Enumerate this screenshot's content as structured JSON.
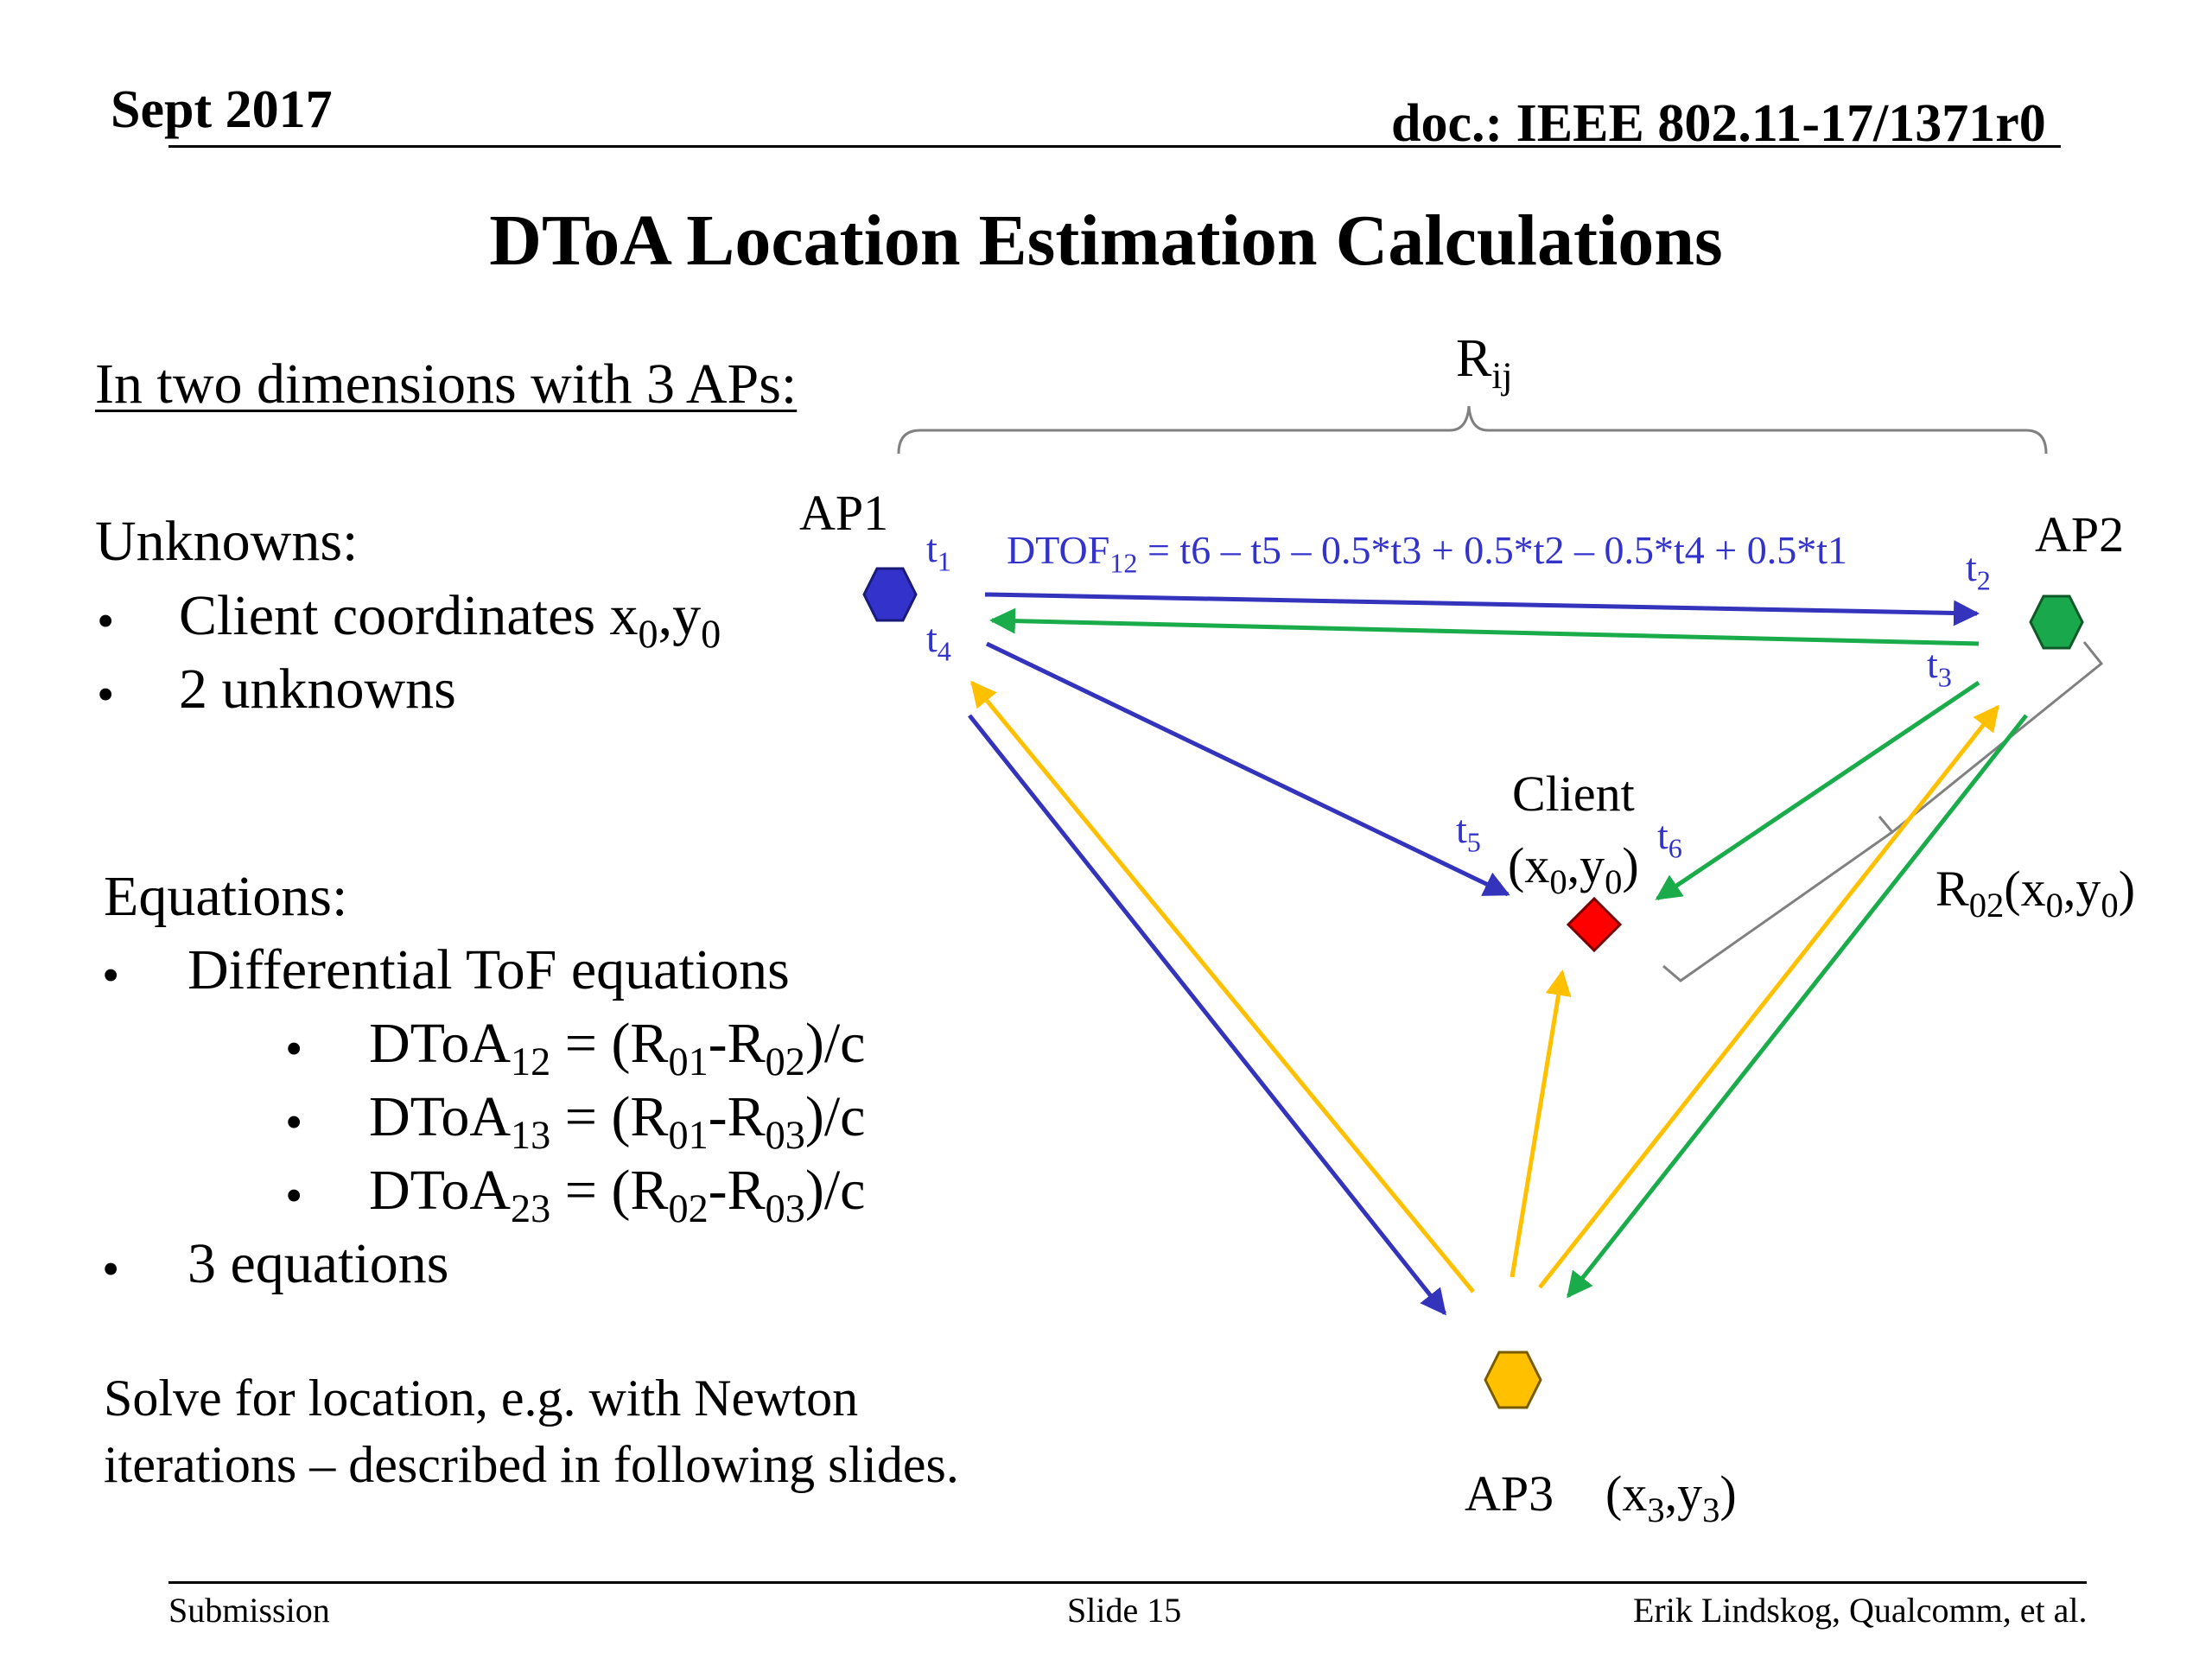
{
  "header": {
    "date": "Sept 2017",
    "doc": "doc.: IEEE 802.11-17/1371r0"
  },
  "title": "DToA Location Estimation Calculations",
  "left": {
    "intro": "In two dimensions with 3 APs:",
    "unknowns_heading": "Unknowns:",
    "unknowns": [
      {
        "text": "Client coordinates x",
        "s1": "0",
        "mid": ",y",
        "s2": "0"
      },
      {
        "text": "2 unknowns"
      }
    ],
    "equations_heading": "Equations:",
    "eq_item1": "Differential ToF equations",
    "equations": [
      {
        "a": "DToA",
        "a_sub": "12",
        "b": " = (R",
        "b_sub": "01",
        "c": "-R",
        "c_sub": "02",
        "d": ")/c"
      },
      {
        "a": "DToA",
        "a_sub": "13",
        "b": " = (R",
        "b_sub": "01",
        "c": "-R",
        "c_sub": "03",
        "d": ")/c"
      },
      {
        "a": "DToA",
        "a_sub": "23",
        "b": " = (R",
        "b_sub": "02",
        "c": "-R",
        "c_sub": "03",
        "d": ")/c"
      }
    ],
    "eq_item2": "3 equations",
    "solve_line1": "Solve for location, e.g. with Newton",
    "solve_line2": "iterations – described in following slides."
  },
  "diagram": {
    "rij": {
      "base": "R",
      "sub": "ij"
    },
    "ap1": "AP1",
    "ap2": "AP2",
    "ap3": "AP3",
    "ap3_coord": {
      "a": "(x",
      "s1": "3",
      "b": ",y",
      "s2": "3",
      "c": ")"
    },
    "client": "Client",
    "client_coord": {
      "a": "(x",
      "s1": "0",
      "b": ",y",
      "s2": "0",
      "c": ")"
    },
    "r02": {
      "a": "R",
      "s0": "02",
      "b": "(x",
      "s1": "0",
      "c": ",y",
      "s2": "0",
      "d": ")"
    },
    "dtof": {
      "a": "DTOF",
      "sub": "12",
      "b": " = t6 – t5 – 0.5*t3 + 0.5*t2 – 0.5*t4 + 0.5*t1"
    },
    "t1": {
      "base": "t",
      "sub": "1"
    },
    "t2": {
      "base": "t",
      "sub": "2"
    },
    "t3": {
      "base": "t",
      "sub": "3"
    },
    "t4": {
      "base": "t",
      "sub": "4"
    },
    "t5": {
      "base": "t",
      "sub": "5"
    },
    "t6": {
      "base": "t",
      "sub": "6"
    },
    "colors": {
      "ap1": "#3333cc",
      "ap2": "#1aa84c",
      "ap3": "#ffc000",
      "client": "#ff0000",
      "blue_arrow": "#3333bb",
      "green_arrow": "#1aab4a",
      "yellow_arrow": "#ffc000",
      "bracket": "#808080"
    }
  },
  "footer": {
    "left": "Submission",
    "center": "Slide 15",
    "right": "Erik Lindskog, Qualcomm, et al."
  }
}
